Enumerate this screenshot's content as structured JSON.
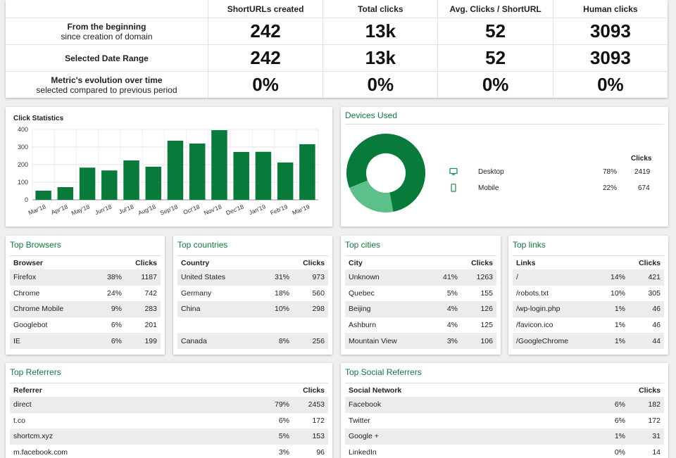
{
  "summary": {
    "headers": [
      "ShortURLs created",
      "Total clicks",
      "Avg. Clicks / ShortURL",
      "Human clicks"
    ],
    "rows": [
      {
        "label": "From the beginning",
        "sublabel": "since creation of domain",
        "values": [
          "242",
          "13k",
          "52",
          "3093"
        ]
      },
      {
        "label": "Selected Date Range",
        "sublabel": "",
        "values": [
          "242",
          "13k",
          "52",
          "3093"
        ]
      },
      {
        "label": "Metric's evolution over time",
        "sublabel": "selected compared to previous period",
        "values": [
          "0%",
          "0%",
          "0%",
          "0%"
        ]
      }
    ]
  },
  "click_statistics": {
    "title": "Click Statistics",
    "bar_color": "#087a3a"
  },
  "chart_data": {
    "type": "bar",
    "title": "Click Statistics",
    "categories": [
      "Mar'18",
      "Apr'18",
      "May'18",
      "Jun'18",
      "Jul'18",
      "Aug'18",
      "Sep'18",
      "Oct'18",
      "Nov'18",
      "Dec'18",
      "Jan'19",
      "Feb'19",
      "Mar'19"
    ],
    "values": [
      52,
      72,
      183,
      167,
      224,
      188,
      336,
      320,
      396,
      272,
      273,
      212,
      316
    ],
    "yticks": [
      "0",
      "100",
      "200",
      "300",
      "400"
    ],
    "ylim": [
      0,
      400
    ],
    "grid": true
  },
  "devices": {
    "title": "Devices Used",
    "clicks_header": "Clicks",
    "items": [
      {
        "name": "Desktop",
        "icon": "desktop-icon",
        "percent": "78%",
        "clicks": "2419",
        "fraction": 0.78,
        "color": "#087a3a"
      },
      {
        "name": "Mobile",
        "icon": "mobile-icon",
        "percent": "22%",
        "clicks": "674",
        "fraction": 0.22,
        "color": "#5cc08a"
      }
    ]
  },
  "top_browsers": {
    "title": "Top Browsers",
    "columns": [
      "Browser",
      "",
      "Clicks"
    ],
    "rows": [
      [
        "Firefox",
        "38%",
        "1187"
      ],
      [
        "Chrome",
        "24%",
        "742"
      ],
      [
        "Chrome Mobile",
        "9%",
        "283"
      ],
      [
        "Googlebot",
        "6%",
        "201"
      ],
      [
        "IE",
        "6%",
        "199"
      ]
    ]
  },
  "top_countries": {
    "title": "Top countries",
    "columns": [
      "Country",
      "",
      "Clicks"
    ],
    "rows": [
      [
        "United States",
        "31%",
        "973"
      ],
      [
        "Germany",
        "18%",
        "560"
      ],
      [
        "China",
        "10%",
        "298"
      ],
      [
        "",
        "",
        ""
      ],
      [
        "Canada",
        "8%",
        "256"
      ]
    ]
  },
  "top_cities": {
    "title": "Top cities",
    "columns": [
      "City",
      "",
      "Clicks"
    ],
    "rows": [
      [
        "Unknown",
        "41%",
        "1263"
      ],
      [
        "Quebec",
        "5%",
        "155"
      ],
      [
        "Beijing",
        "4%",
        "126"
      ],
      [
        "Ashburn",
        "4%",
        "125"
      ],
      [
        "Mountain View",
        "3%",
        "106"
      ]
    ]
  },
  "top_links": {
    "title": "Top links",
    "columns": [
      "Links",
      "",
      "Clicks"
    ],
    "rows": [
      [
        "/",
        "14%",
        "421"
      ],
      [
        "/robots.txt",
        "10%",
        "305"
      ],
      [
        "/wp-login.php",
        "1%",
        "46"
      ],
      [
        "/favicon.ico",
        "1%",
        "46"
      ],
      [
        "/GoogleChrome",
        "1%",
        "44"
      ]
    ]
  },
  "top_referrers": {
    "title": "Top Referrers",
    "columns": [
      "Referrer",
      "",
      "Clicks"
    ],
    "rows": [
      [
        "direct",
        "79%",
        "2453"
      ],
      [
        "t.co",
        "6%",
        "172"
      ],
      [
        "shortcm.xyz",
        "5%",
        "153"
      ],
      [
        "m.facebook.com",
        "3%",
        "96"
      ]
    ]
  },
  "top_social_referrers": {
    "title": "Top Social Referrers",
    "columns": [
      "Social Network",
      "",
      "Clicks"
    ],
    "rows": [
      [
        "Facebook",
        "6%",
        "182"
      ],
      [
        "Twitter",
        "6%",
        "172"
      ],
      [
        "Google +",
        "1%",
        "31"
      ],
      [
        "LinkedIn",
        "0%",
        "14"
      ]
    ]
  }
}
